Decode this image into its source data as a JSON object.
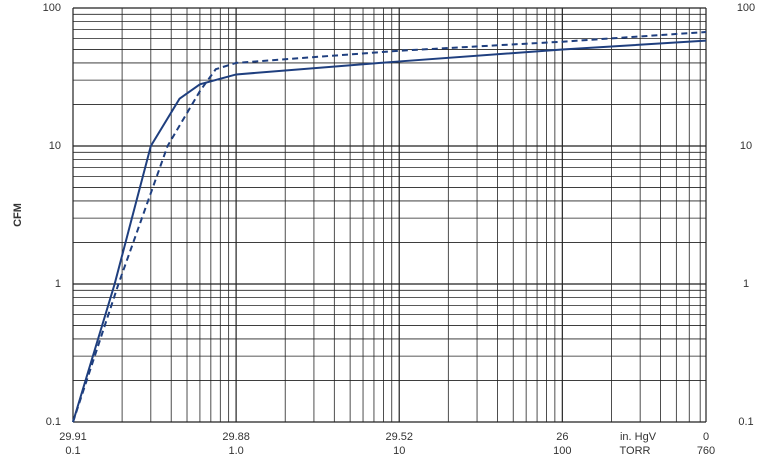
{
  "chart_data": {
    "type": "line",
    "log_x": true,
    "log_y": true,
    "grid": true,
    "y_label": "CFM",
    "x_unit": "TORR",
    "x_secondary_unit": "in. HgV",
    "xlim": [
      0.1,
      760
    ],
    "ylim": [
      0.1,
      100
    ],
    "xticks": [
      0.1,
      {
        "value": 1,
        "label": "1.0"
      },
      10,
      100,
      760
    ],
    "x_secondary_labels": [
      "29.91",
      "29.88",
      "29.52",
      "26",
      "0"
    ],
    "yticks": [
      0.1,
      1,
      10,
      100
    ],
    "series": [
      {
        "color": "#1f3f7f",
        "dash": false,
        "x": [
          0.1,
          0.18,
          0.3,
          0.45,
          0.6,
          1,
          10,
          100,
          760
        ],
        "values": [
          0.1,
          1,
          10,
          22,
          28,
          33,
          41,
          50,
          58
        ]
      },
      {
        "color": "#1f3f7f",
        "dash": true,
        "x": [
          0.1,
          0.19,
          0.38,
          0.6,
          0.75,
          1,
          10,
          100,
          760
        ],
        "values": [
          0.1,
          1,
          10,
          25,
          36,
          40,
          49,
          57,
          67
        ]
      }
    ]
  }
}
